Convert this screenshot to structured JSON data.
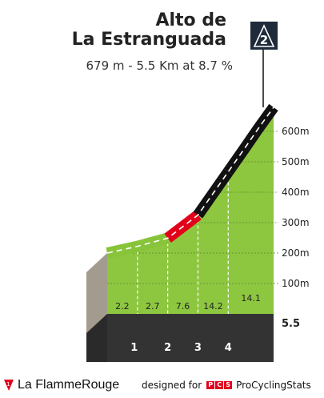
{
  "header": {
    "title_line1": "Alto de",
    "title_line2": "La Estranguada",
    "subtitle": "679 m - 5.5 Km at 8.7 %",
    "category_badge": "2"
  },
  "chart_data": {
    "type": "area",
    "title": "Alto de La Estranguada",
    "subtitle": "679 m - 5.5 Km at 8.7 %",
    "xlabel": "",
    "ylabel": "",
    "x_unit": "km",
    "y_unit": "m",
    "xlim": [
      0,
      5.5
    ],
    "ylim": [
      0,
      700
    ],
    "y_ticks": [
      100,
      200,
      300,
      400,
      500,
      600
    ],
    "y_tick_labels": [
      "100m",
      "200m",
      "300m",
      "400m",
      "500m",
      "600m"
    ],
    "x_km_markers": [
      {
        "km": 1,
        "label": "1"
      },
      {
        "km": 2,
        "label": "2"
      },
      {
        "km": 3,
        "label": "3"
      },
      {
        "km": 4,
        "label": "4"
      }
    ],
    "total_distance_label": "5.5",
    "profile_points": [
      {
        "km": 0,
        "alt": 200
      },
      {
        "km": 1,
        "alt": 222
      },
      {
        "km": 2,
        "alt": 249
      },
      {
        "km": 2.7,
        "alt": 302
      },
      {
        "km": 3,
        "alt": 325
      },
      {
        "km": 3.5,
        "alt": 396
      },
      {
        "km": 4,
        "alt": 467
      },
      {
        "km": 4.5,
        "alt": 538
      },
      {
        "km": 5,
        "alt": 610
      },
      {
        "km": 5.5,
        "alt": 679
      }
    ],
    "segments": [
      {
        "from_km": 0,
        "to_km": 1,
        "gradient": 2.2,
        "label": "2.2",
        "color": "#88c43a"
      },
      {
        "from_km": 1,
        "to_km": 2,
        "gradient": 2.7,
        "label": "2.7",
        "color": "#88c43a"
      },
      {
        "from_km": 2,
        "to_km": 3,
        "gradient": 7.6,
        "label": "7.6",
        "color": "#e2001a"
      },
      {
        "from_km": 3,
        "to_km": 4,
        "gradient": 14.2,
        "label": "14.2",
        "color": "#111111"
      },
      {
        "from_km": 4,
        "to_km": 5.5,
        "gradient": 14.1,
        "label": "14.1",
        "color": "#111111"
      }
    ],
    "grid": true,
    "colors": {
      "area": "#8dc63f",
      "side_wall": "#a39b8e",
      "base_band": "#333333",
      "grid": "#5a8a2a",
      "road_dash": "#ffffff"
    }
  },
  "footer": {
    "brand_left_part1": "La Flamme",
    "brand_left_part2": "Rouge",
    "designed_for": "designed for",
    "pcs_logo_letters": [
      "P",
      "C",
      "S"
    ],
    "brand_right": "ProCyclingStats"
  }
}
